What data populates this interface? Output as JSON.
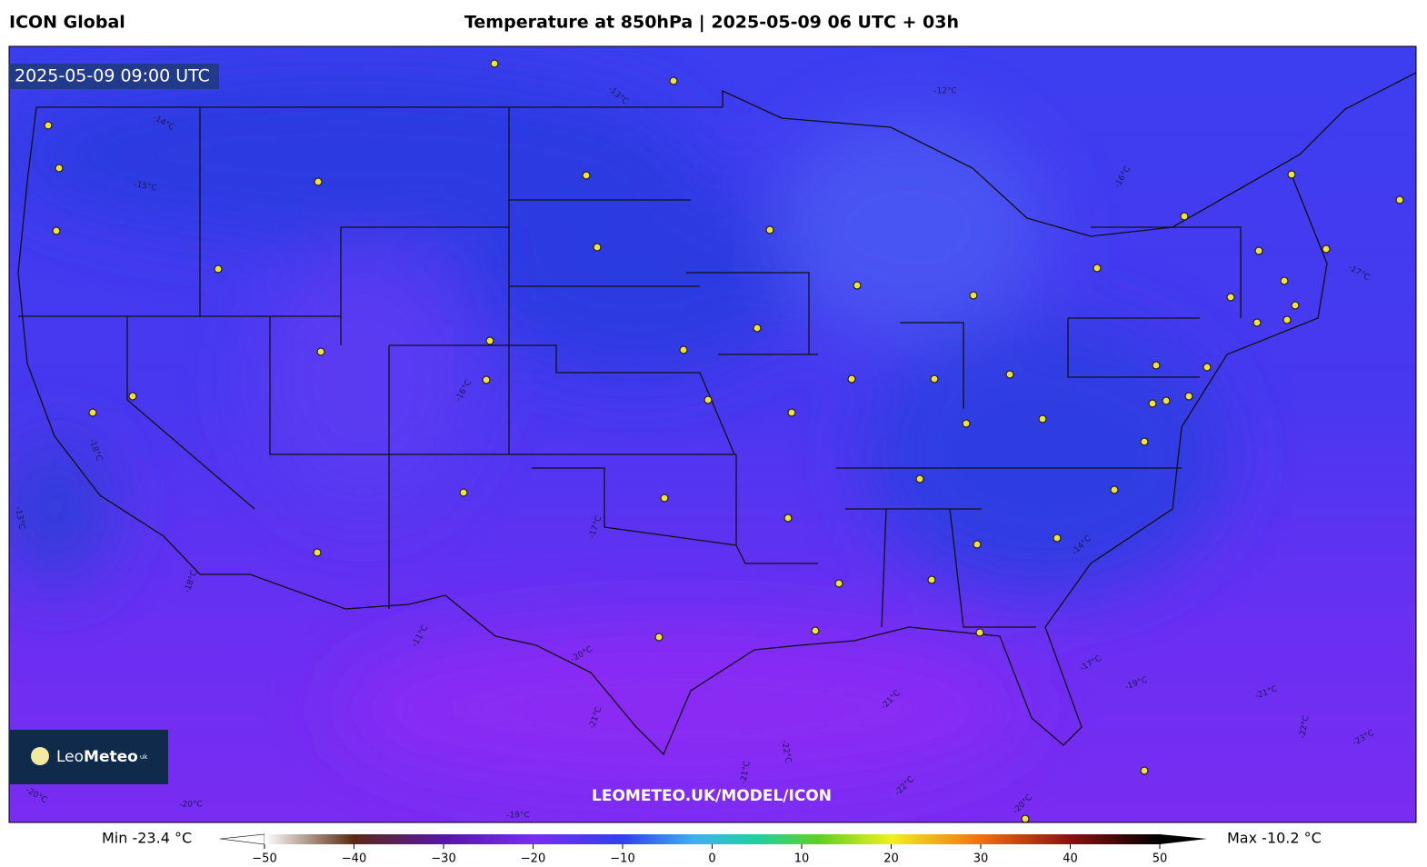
{
  "header": {
    "model": "ICON Global",
    "title": "Temperature at 850hPa | 2025-05-09 06 UTC + 03h"
  },
  "map": {
    "valid_time": "2025-05-09 09:00 UTC",
    "watermark": "LEOMETEO.UK/MODEL/ICON",
    "logo": {
      "leo": "Leo",
      "meteo": "Meteo",
      "suffix": "uk"
    },
    "contour_labels": [
      "-12°C",
      "-13°C",
      "-14°C",
      "-15°C",
      "-16°C",
      "-16°C",
      "-18°C",
      "-13°C",
      "-17°C",
      "-11°C",
      "-14°C",
      "-18°C",
      "-17°C",
      "-20°C",
      "-21°C",
      "-21°C",
      "-22°C",
      "-21°C",
      "-19°C",
      "-21°C",
      "-22°C",
      "-23°C",
      "-17°C",
      "-20°C",
      "-19°C",
      "-22°C",
      "-20°C",
      "-20°C"
    ]
  },
  "colorbar": {
    "min_label": "Min -23.4 °C",
    "max_label": "Max -10.2 °C",
    "lim": [
      -50,
      50
    ],
    "ticks": [
      {
        "value": -50,
        "label": "−50"
      },
      {
        "value": -40,
        "label": "−40"
      },
      {
        "value": -30,
        "label": "−30"
      },
      {
        "value": -20,
        "label": "−20"
      },
      {
        "value": -10,
        "label": "−10"
      },
      0,
      10,
      20,
      30,
      40,
      50
    ]
  }
}
